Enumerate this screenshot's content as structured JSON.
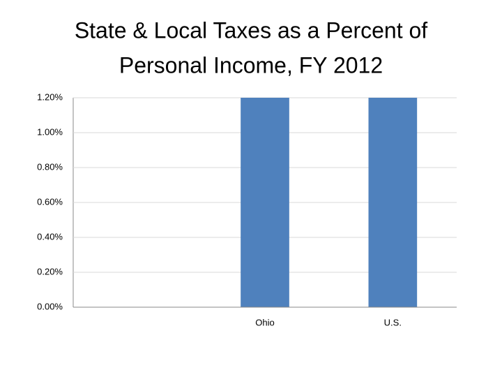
{
  "chart_data": {
    "type": "bar",
    "title": [
      "State & Local Taxes as a Percent of",
      "Personal Income, FY 2012"
    ],
    "categories": [
      null,
      "Ohio",
      "U.S."
    ],
    "values": [
      null,
      1.2,
      1.2
    ],
    "color": "#4f81bd",
    "ylim": [
      0,
      1.2
    ],
    "yticks": [
      {
        "value": 0,
        "label": "0.00%"
      },
      {
        "value": 0.2,
        "label": "0.20%"
      },
      {
        "value": 0.4,
        "label": "0.40%"
      },
      {
        "value": 0.6,
        "label": "0.60%"
      },
      {
        "value": 0.8,
        "label": "0.80%"
      },
      {
        "value": 1.0,
        "label": "1.00%"
      },
      {
        "value": 1.2,
        "label": "1.20%"
      }
    ],
    "grid": true
  }
}
